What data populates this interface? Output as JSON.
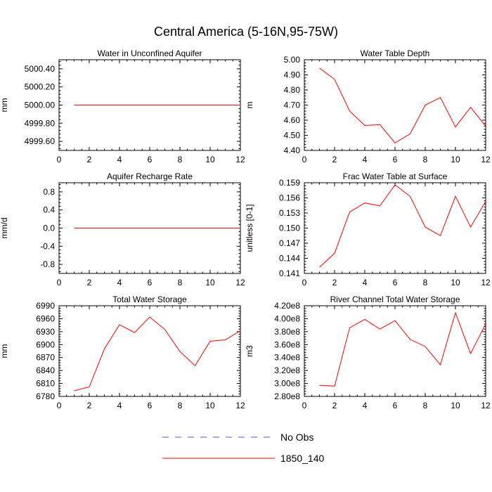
{
  "chart_data": {
    "type": "line",
    "title": "Central America (5-16N,95-75W)",
    "legend": {
      "placement": "bottom-center",
      "entries": [
        {
          "name": "No Obs",
          "color": "#5555cc",
          "style": "dashed"
        },
        {
          "name": "1850_140",
          "color": "#ff0000",
          "style": "solid"
        }
      ]
    },
    "panels": [
      {
        "id": "water-unconfined-aquifer",
        "title": "Water in Unconfined Aquifer",
        "ylabel": "mm",
        "xlim": [
          0,
          12
        ],
        "ylim": [
          4999.5,
          5000.5
        ],
        "xticks": [
          0,
          2,
          4,
          6,
          8,
          10,
          12
        ],
        "yticks": [
          4999.6,
          4999.8,
          5000.0,
          5000.2,
          5000.4
        ],
        "ytick_labels": [
          "4999.60",
          "4999.80",
          "5000.00",
          "5000.20",
          "5000.40"
        ],
        "x": [
          1,
          2,
          3,
          4,
          5,
          6,
          7,
          8,
          9,
          10,
          11,
          12
        ],
        "values": [
          5000,
          5000,
          5000,
          5000,
          5000,
          5000,
          5000,
          5000,
          5000,
          5000,
          5000,
          5000
        ]
      },
      {
        "id": "water-table-depth",
        "title": "Water Table Depth",
        "ylabel": "m",
        "xlim": [
          0,
          12
        ],
        "ylim": [
          4.4,
          5.0
        ],
        "xticks": [
          0,
          2,
          4,
          6,
          8,
          10,
          12
        ],
        "yticks": [
          4.4,
          4.5,
          4.6,
          4.7,
          4.8,
          4.9,
          5.0
        ],
        "ytick_labels": [
          "4.40",
          "4.50",
          "4.60",
          "4.70",
          "4.80",
          "4.90",
          "5.00"
        ],
        "x": [
          1,
          2,
          3,
          4,
          5,
          6,
          7,
          8,
          9,
          10,
          11,
          12
        ],
        "values": [
          4.945,
          4.87,
          4.66,
          4.565,
          4.57,
          4.45,
          4.51,
          4.7,
          4.75,
          4.555,
          4.685,
          4.56
        ]
      },
      {
        "id": "aquifer-recharge-rate",
        "title": "Aquifer Recharge Rate",
        "ylabel": "mm/d",
        "xlim": [
          0,
          12
        ],
        "ylim": [
          -1.0,
          1.0
        ],
        "xticks": [
          0,
          2,
          4,
          6,
          8,
          10,
          12
        ],
        "yticks": [
          -0.8,
          -0.4,
          0.0,
          0.4,
          0.8
        ],
        "ytick_labels": [
          "-0.8",
          "-0.4",
          "0.0",
          "0.4",
          "0.8"
        ],
        "x": [
          1,
          2,
          3,
          4,
          5,
          6,
          7,
          8,
          9,
          10,
          11,
          12
        ],
        "values": [
          0,
          0,
          0,
          0,
          0,
          0,
          0,
          0,
          0,
          0,
          0,
          0
        ]
      },
      {
        "id": "frac-water-table-surface",
        "title": "Frac Water Table at Surface",
        "ylabel": "unitless [0-1]",
        "xlim": [
          0,
          12
        ],
        "ylim": [
          0.141,
          0.159
        ],
        "xticks": [
          0,
          2,
          4,
          6,
          8,
          10,
          12
        ],
        "yticks": [
          0.141,
          0.144,
          0.147,
          0.15,
          0.153,
          0.156,
          0.159
        ],
        "ytick_labels": [
          "0.141",
          "0.144",
          "0.147",
          "0.150",
          "0.153",
          "0.156",
          "0.159"
        ],
        "x": [
          1,
          2,
          3,
          4,
          5,
          6,
          7,
          8,
          9,
          10,
          11,
          12
        ],
        "values": [
          0.1422,
          0.145,
          0.1532,
          0.155,
          0.1544,
          0.1586,
          0.1563,
          0.1502,
          0.1485,
          0.1563,
          0.1502,
          0.1553
        ]
      },
      {
        "id": "total-water-storage",
        "title": "Total Water Storage",
        "ylabel": "mm",
        "xlim": [
          0,
          12
        ],
        "ylim": [
          6780,
          6990
        ],
        "xticks": [
          0,
          2,
          4,
          6,
          8,
          10,
          12
        ],
        "yticks": [
          6780,
          6810,
          6840,
          6870,
          6900,
          6930,
          6960,
          6990
        ],
        "ytick_labels": [
          "6780",
          "6810",
          "6840",
          "6870",
          "6900",
          "6930",
          "6960",
          "6990"
        ],
        "x": [
          1,
          2,
          3,
          4,
          5,
          6,
          7,
          8,
          9,
          10,
          11,
          12
        ],
        "values": [
          6793,
          6802,
          6890,
          6946,
          6928,
          6964,
          6935,
          6884,
          6851,
          6908,
          6911,
          6932
        ]
      },
      {
        "id": "river-channel-water-storage",
        "title": "River Channel Total Water Storage",
        "ylabel": "m3",
        "xlim": [
          0,
          12
        ],
        "ylim": [
          280000000,
          420000000
        ],
        "xticks": [
          0,
          2,
          4,
          6,
          8,
          10,
          12
        ],
        "yticks": [
          280000000,
          300000000,
          320000000,
          340000000,
          360000000,
          380000000,
          400000000,
          420000000
        ],
        "ytick_labels": [
          "2.80e8",
          "3.00e8",
          "3.20e8",
          "3.40e8",
          "3.60e8",
          "3.80e8",
          "4.00e8",
          "4.20e8"
        ],
        "x": [
          1,
          2,
          3,
          4,
          5,
          6,
          7,
          8,
          9,
          10,
          11,
          12
        ],
        "values": [
          297000000,
          296000000,
          386000000,
          399000000,
          384000000,
          397000000,
          368000000,
          357000000,
          329000000,
          409000000,
          346000000,
          392000000
        ]
      }
    ]
  }
}
